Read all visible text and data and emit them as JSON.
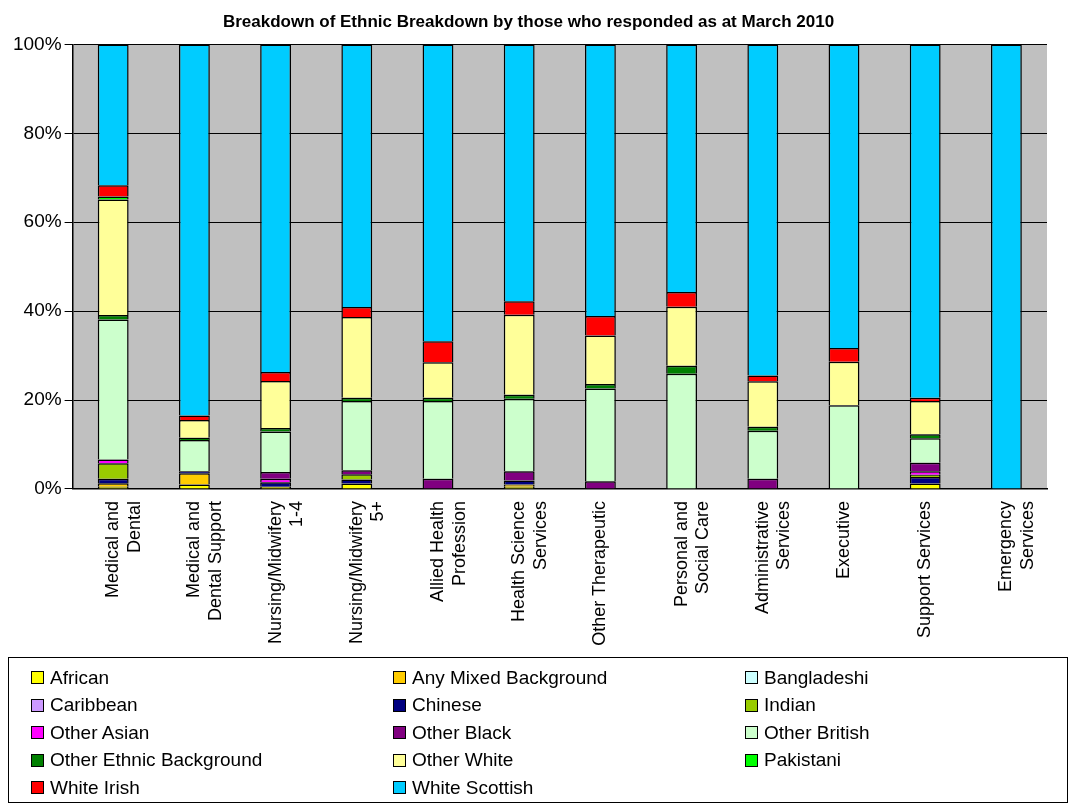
{
  "chart_data": {
    "type": "bar",
    "stacked": true,
    "title": "Breakdown of Ethnic Breakdown by those who responded as at March 2010",
    "categories": [
      "Medical and Dental",
      "Medical and Dental Support",
      "Nursing/Midwifery 1-4",
      "Nursing/Midwifery 5+",
      "Allied Health Profession",
      "Health Science Services",
      "Other Therapeutic",
      "Personal and Social Care",
      "Administrative Services",
      "Executive",
      "Support Services",
      "Emergency Services"
    ],
    "series": [
      {
        "name": "African",
        "color": "#ffff00",
        "values": [
          0.5,
          1,
          0.5,
          1.2,
          0,
          0.5,
          0,
          0,
          0,
          0,
          1.2,
          0
        ]
      },
      {
        "name": "Any Mixed Background",
        "color": "#ffcc00",
        "values": [
          0.8,
          2.5,
          0,
          0,
          0,
          0.5,
          0,
          0,
          0,
          0,
          0,
          0
        ]
      },
      {
        "name": "Bangladeshi",
        "color": "#ccffff",
        "values": [
          0,
          0,
          0,
          0,
          0,
          0,
          0,
          0,
          0,
          0,
          0,
          0
        ]
      },
      {
        "name": "Caribbean",
        "color": "#cc99ff",
        "values": [
          0,
          0,
          0,
          0,
          0,
          0,
          0,
          0,
          0,
          0,
          0,
          0
        ]
      },
      {
        "name": "Chinese",
        "color": "#000080",
        "values": [
          1,
          0.5,
          1,
          0.9,
          0,
          0.9,
          0,
          0,
          0,
          0,
          1.5,
          0
        ]
      },
      {
        "name": "Indian",
        "color": "#99cc00",
        "values": [
          3.5,
          0,
          0,
          1.2,
          0,
          0,
          0,
          0,
          0,
          0,
          0.5,
          0
        ]
      },
      {
        "name": "Other Asian",
        "color": "#ff00ff",
        "values": [
          0.8,
          0,
          0.8,
          0,
          0,
          0,
          0,
          0,
          0,
          0,
          0.8,
          0
        ]
      },
      {
        "name": "Other Black",
        "color": "#800080",
        "values": [
          0,
          0,
          1.5,
          0.9,
          2.3,
          2.1,
          1.7,
          0,
          2.3,
          0,
          1.9,
          0
        ]
      },
      {
        "name": "Other British",
        "color": "#ccffcc",
        "values": [
          31.5,
          7,
          9.1,
          15.6,
          17.5,
          16.3,
          20.9,
          25.9,
          10.8,
          18.8,
          5.5,
          0
        ]
      },
      {
        "name": "Other Ethnic Background",
        "color": "#008000",
        "values": [
          1,
          0.5,
          0.8,
          0.7,
          0.7,
          0.9,
          1,
          1.8,
          0.9,
          0,
          0.9,
          0
        ]
      },
      {
        "name": "Other White",
        "color": "#ffff99",
        "values": [
          26,
          4,
          10.6,
          18.2,
          8,
          18,
          10.9,
          13.3,
          10.2,
          9.8,
          7.5,
          0
        ]
      },
      {
        "name": "Pakistani",
        "color": "#00ff00",
        "values": [
          0.7,
          0,
          0,
          0,
          0,
          0,
          0,
          0,
          0,
          0,
          0,
          0
        ]
      },
      {
        "name": "White Irish",
        "color": "#ff0000",
        "values": [
          2.5,
          1,
          2,
          2.2,
          4.7,
          3,
          4.4,
          3.3,
          1.3,
          3.1,
          0.7,
          0
        ]
      },
      {
        "name": "White Scottish",
        "color": "#00ccff",
        "values": [
          31.7,
          83.5,
          73.7,
          59.1,
          66.8,
          57.8,
          61.1,
          55.7,
          74.5,
          68.3,
          79.5,
          100
        ]
      }
    ],
    "ylim": [
      0,
      100
    ],
    "yticks": [
      {
        "value": 0,
        "label": "0%"
      },
      {
        "value": 20,
        "label": "20%"
      },
      {
        "value": 40,
        "label": "40%"
      },
      {
        "value": 60,
        "label": "60%"
      },
      {
        "value": 80,
        "label": "80%"
      },
      {
        "value": 100,
        "label": "100%"
      }
    ],
    "grid": "y",
    "legend": "bottom"
  }
}
